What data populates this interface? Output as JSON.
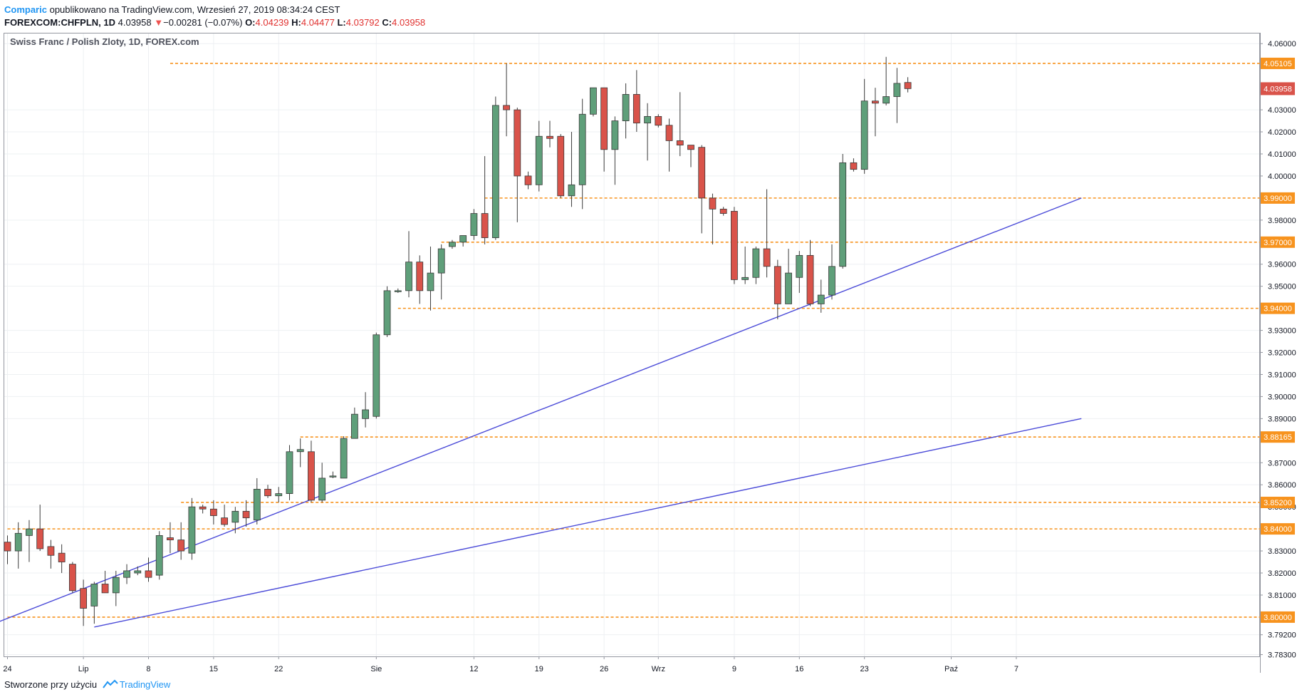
{
  "header": {
    "author": "Comparic",
    "published": "opublikowano na TradingView.com, Wrzesień 27, 2019 08:34:24 CEST",
    "symbol": "FOREXCOM:CHFPLN, 1D",
    "last": "4.03958",
    "change_arrow": "▼",
    "change": "−0.00281 (−0.07%)",
    "o_label": "O:",
    "o_value": "4.04239",
    "h_label": "H:",
    "h_value": "4.04477",
    "l_label": "L:",
    "l_value": "4.03792",
    "c_label": "C:",
    "c_value": "4.03958"
  },
  "footer": {
    "created_with": "Stworzone przy użyciu",
    "brand": "TradingView",
    "logo_icon": "tradingview-logo-icon"
  },
  "colors": {
    "up": "#5f9f7a",
    "down": "#d9534a",
    "level": "#f7931e",
    "trend": "#4b4bd8",
    "grid": "#eef0f3",
    "last_price_bg": "#d9534a"
  },
  "chart_data": {
    "type": "candlestick",
    "title": "Swiss Franc / Polish Zloty, 1D, FOREX.com",
    "ylim": [
      3.7822,
      4.0646
    ],
    "y_ticks": [
      "4.06000",
      "4.03000",
      "4.02000",
      "4.01000",
      "4.00000",
      "3.98000",
      "3.96000",
      "3.95000",
      "3.93000",
      "3.92000",
      "3.91000",
      "3.90000",
      "3.89000",
      "3.87000",
      "3.86000",
      "3.85000",
      "3.83000",
      "3.82000",
      "3.81000",
      "3.79200",
      "3.78300"
    ],
    "x_ticks": [
      {
        "label": "24",
        "index": 0
      },
      {
        "label": "Lip",
        "index": 7
      },
      {
        "label": "8",
        "index": 13
      },
      {
        "label": "15",
        "index": 19
      },
      {
        "label": "22",
        "index": 25
      },
      {
        "label": "Sie",
        "index": 34
      },
      {
        "label": "12",
        "index": 43
      },
      {
        "label": "19",
        "index": 49
      },
      {
        "label": "26",
        "index": 55
      },
      {
        "label": "Wrz",
        "index": 60
      },
      {
        "label": "9",
        "index": 67
      },
      {
        "label": "16",
        "index": 73
      },
      {
        "label": "23",
        "index": 79
      },
      {
        "label": "Paź",
        "index": 87
      },
      {
        "label": "7",
        "index": 93
      }
    ],
    "candles": [
      {
        "o": 3.834,
        "h": 3.837,
        "l": 3.824,
        "c": 3.83
      },
      {
        "o": 3.83,
        "h": 3.843,
        "l": 3.822,
        "c": 3.838
      },
      {
        "o": 3.837,
        "h": 3.844,
        "l": 3.825,
        "c": 3.84
      },
      {
        "o": 3.84,
        "h": 3.851,
        "l": 3.83,
        "c": 3.831
      },
      {
        "o": 3.832,
        "h": 3.835,
        "l": 3.822,
        "c": 3.828
      },
      {
        "o": 3.829,
        "h": 3.833,
        "l": 3.82,
        "c": 3.825
      },
      {
        "o": 3.824,
        "h": 3.825,
        "l": 3.811,
        "c": 3.812
      },
      {
        "o": 3.813,
        "h": 3.817,
        "l": 3.796,
        "c": 3.804
      },
      {
        "o": 3.805,
        "h": 3.816,
        "l": 3.797,
        "c": 3.815
      },
      {
        "o": 3.815,
        "h": 3.821,
        "l": 3.811,
        "c": 3.811
      },
      {
        "o": 3.811,
        "h": 3.821,
        "l": 3.805,
        "c": 3.818
      },
      {
        "o": 3.818,
        "h": 3.824,
        "l": 3.815,
        "c": 3.821
      },
      {
        "o": 3.82,
        "h": 3.823,
        "l": 3.819,
        "c": 3.821
      },
      {
        "o": 3.821,
        "h": 3.827,
        "l": 3.816,
        "c": 3.818
      },
      {
        "o": 3.819,
        "h": 3.839,
        "l": 3.817,
        "c": 3.837
      },
      {
        "o": 3.836,
        "h": 3.843,
        "l": 3.829,
        "c": 3.835
      },
      {
        "o": 3.835,
        "h": 3.843,
        "l": 3.826,
        "c": 3.83
      },
      {
        "o": 3.829,
        "h": 3.854,
        "l": 3.826,
        "c": 3.85
      },
      {
        "o": 3.85,
        "h": 3.851,
        "l": 3.847,
        "c": 3.849
      },
      {
        "o": 3.849,
        "h": 3.853,
        "l": 3.842,
        "c": 3.846
      },
      {
        "o": 3.845,
        "h": 3.851,
        "l": 3.841,
        "c": 3.842
      },
      {
        "o": 3.843,
        "h": 3.85,
        "l": 3.838,
        "c": 3.848
      },
      {
        "o": 3.848,
        "h": 3.853,
        "l": 3.841,
        "c": 3.845
      },
      {
        "o": 3.844,
        "h": 3.863,
        "l": 3.842,
        "c": 3.858
      },
      {
        "o": 3.858,
        "h": 3.86,
        "l": 3.854,
        "c": 3.855
      },
      {
        "o": 3.855,
        "h": 3.859,
        "l": 3.852,
        "c": 3.856
      },
      {
        "o": 3.856,
        "h": 3.878,
        "l": 3.853,
        "c": 3.875
      },
      {
        "o": 3.875,
        "h": 3.881,
        "l": 3.868,
        "c": 3.876
      },
      {
        "o": 3.875,
        "h": 3.88,
        "l": 3.852,
        "c": 3.853
      },
      {
        "o": 3.853,
        "h": 3.87,
        "l": 3.852,
        "c": 3.863
      },
      {
        "o": 3.864,
        "h": 3.866,
        "l": 3.863,
        "c": 3.864
      },
      {
        "o": 3.863,
        "h": 3.882,
        "l": 3.863,
        "c": 3.881
      },
      {
        "o": 3.881,
        "h": 3.895,
        "l": 3.881,
        "c": 3.892
      },
      {
        "o": 3.89,
        "h": 3.902,
        "l": 3.886,
        "c": 3.894
      },
      {
        "o": 3.891,
        "h": 3.929,
        "l": 3.89,
        "c": 3.928
      },
      {
        "o": 3.928,
        "h": 3.95,
        "l": 3.927,
        "c": 3.948
      },
      {
        "o": 3.948,
        "h": 3.949,
        "l": 3.947,
        "c": 3.948
      },
      {
        "o": 3.948,
        "h": 3.975,
        "l": 3.945,
        "c": 3.961
      },
      {
        "o": 3.961,
        "h": 3.964,
        "l": 3.942,
        "c": 3.948
      },
      {
        "o": 3.948,
        "h": 3.968,
        "l": 3.939,
        "c": 3.956
      },
      {
        "o": 3.956,
        "h": 3.969,
        "l": 3.944,
        "c": 3.967
      },
      {
        "o": 3.968,
        "h": 3.971,
        "l": 3.967,
        "c": 3.97
      },
      {
        "o": 3.97,
        "h": 3.973,
        "l": 3.968,
        "c": 3.973
      },
      {
        "o": 3.973,
        "h": 3.985,
        "l": 3.971,
        "c": 3.983
      },
      {
        "o": 3.983,
        "h": 4.009,
        "l": 3.969,
        "c": 3.972
      },
      {
        "o": 3.972,
        "h": 4.036,
        "l": 3.971,
        "c": 4.032
      },
      {
        "o": 4.032,
        "h": 4.051,
        "l": 4.018,
        "c": 4.03
      },
      {
        "o": 4.03,
        "h": 4.031,
        "l": 3.979,
        "c": 4.0
      },
      {
        "o": 4.0,
        "h": 4.002,
        "l": 3.994,
        "c": 3.996
      },
      {
        "o": 3.996,
        "h": 4.025,
        "l": 3.993,
        "c": 4.018
      },
      {
        "o": 4.018,
        "h": 4.025,
        "l": 4.013,
        "c": 4.017
      },
      {
        "o": 4.018,
        "h": 4.019,
        "l": 3.99,
        "c": 3.991
      },
      {
        "o": 3.991,
        "h": 4.02,
        "l": 3.986,
        "c": 3.996
      },
      {
        "o": 3.996,
        "h": 4.035,
        "l": 3.985,
        "c": 4.028
      },
      {
        "o": 4.028,
        "h": 4.04,
        "l": 4.027,
        "c": 4.04
      },
      {
        "o": 4.04,
        "h": 4.04,
        "l": 4.002,
        "c": 4.012
      },
      {
        "o": 4.012,
        "h": 4.027,
        "l": 3.996,
        "c": 4.025
      },
      {
        "o": 4.025,
        "h": 4.042,
        "l": 4.017,
        "c": 4.037
      },
      {
        "o": 4.037,
        "h": 4.048,
        "l": 4.02,
        "c": 4.024
      },
      {
        "o": 4.024,
        "h": 4.033,
        "l": 4.007,
        "c": 4.027
      },
      {
        "o": 4.027,
        "h": 4.028,
        "l": 4.022,
        "c": 4.023
      },
      {
        "o": 4.023,
        "h": 4.026,
        "l": 4.002,
        "c": 4.016
      },
      {
        "o": 4.016,
        "h": 4.038,
        "l": 4.009,
        "c": 4.014
      },
      {
        "o": 4.014,
        "h": 4.014,
        "l": 4.004,
        "c": 4.012
      },
      {
        "o": 4.013,
        "h": 4.014,
        "l": 3.974,
        "c": 3.99
      },
      {
        "o": 3.99,
        "h": 3.992,
        "l": 3.969,
        "c": 3.985
      },
      {
        "o": 3.985,
        "h": 3.986,
        "l": 3.982,
        "c": 3.983
      },
      {
        "o": 3.984,
        "h": 3.986,
        "l": 3.951,
        "c": 3.953
      },
      {
        "o": 3.953,
        "h": 3.968,
        "l": 3.951,
        "c": 3.954
      },
      {
        "o": 3.954,
        "h": 3.968,
        "l": 3.951,
        "c": 3.967
      },
      {
        "o": 3.967,
        "h": 3.994,
        "l": 3.954,
        "c": 3.959
      },
      {
        "o": 3.959,
        "h": 3.962,
        "l": 3.935,
        "c": 3.942
      },
      {
        "o": 3.942,
        "h": 3.967,
        "l": 3.942,
        "c": 3.956
      },
      {
        "o": 3.954,
        "h": 3.966,
        "l": 3.947,
        "c": 3.964
      },
      {
        "o": 3.964,
        "h": 3.971,
        "l": 3.941,
        "c": 3.942
      },
      {
        "o": 3.942,
        "h": 3.953,
        "l": 3.938,
        "c": 3.946
      },
      {
        "o": 3.946,
        "h": 3.969,
        "l": 3.944,
        "c": 3.959
      },
      {
        "o": 3.959,
        "h": 4.01,
        "l": 3.958,
        "c": 4.006
      },
      {
        "o": 4.006,
        "h": 4.008,
        "l": 4.002,
        "c": 4.003
      },
      {
        "o": 4.003,
        "h": 4.044,
        "l": 4.001,
        "c": 4.034
      },
      {
        "o": 4.034,
        "h": 4.04,
        "l": 4.018,
        "c": 4.033
      },
      {
        "o": 4.033,
        "h": 4.054,
        "l": 4.032,
        "c": 4.036
      },
      {
        "o": 4.036,
        "h": 4.049,
        "l": 4.024,
        "c": 4.042
      },
      {
        "o": 4.0424,
        "h": 4.0448,
        "l": 4.0379,
        "c": 4.0396
      }
    ],
    "levels": [
      {
        "price": 4.05105,
        "label": "4.05105",
        "start": 15
      },
      {
        "price": 3.99,
        "label": "3.99000",
        "start": 44
      },
      {
        "price": 3.97,
        "label": "3.97000",
        "start": 40
      },
      {
        "price": 3.94,
        "label": "3.94000",
        "start": 36
      },
      {
        "price": 3.88165,
        "label": "3.88165",
        "start": 27
      },
      {
        "price": 3.852,
        "label": "3.85200",
        "start": 16
      },
      {
        "price": 3.84,
        "label": "3.84000",
        "start": 0
      },
      {
        "price": 3.8,
        "label": "3.80000",
        "start": 0
      }
    ],
    "trendlines": [
      {
        "x1": -7.5,
        "y1": 3.785,
        "x2": 99,
        "y2": 3.99
      },
      {
        "x1": 8,
        "y1": 3.7955,
        "x2": 99,
        "y2": 3.89
      }
    ],
    "last_price": {
      "value": 4.03958,
      "label": "4.03958"
    }
  }
}
